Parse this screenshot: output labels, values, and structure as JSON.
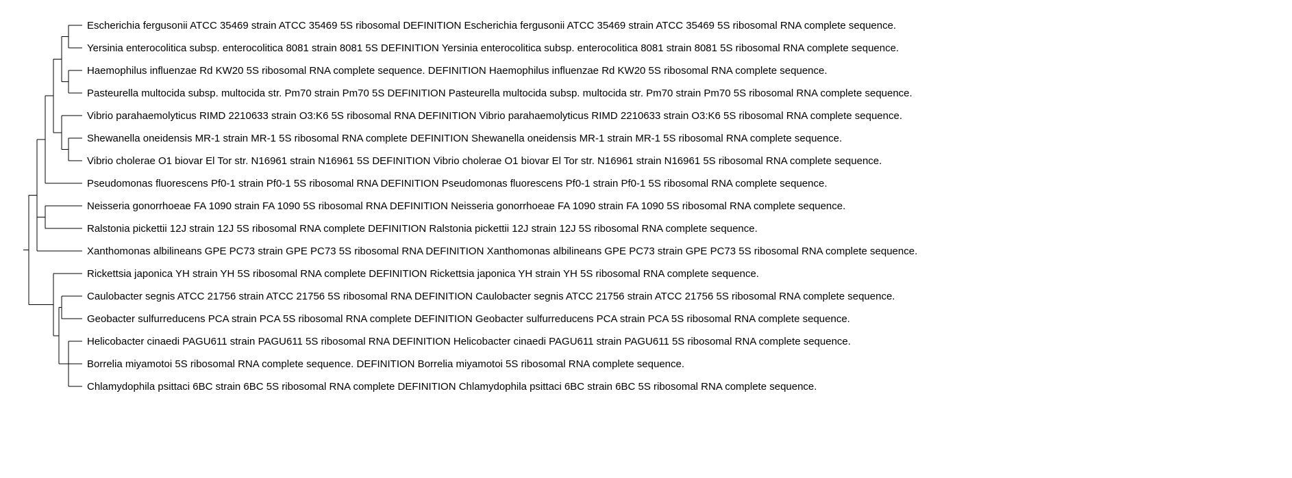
{
  "tree": {
    "line_color": "#000000",
    "label_color": "#000000",
    "leaves": [
      "Escherichia fergusonii ATCC 35469 strain ATCC 35469 5S ribosomal DEFINITION Escherichia fergusonii ATCC 35469 strain ATCC 35469 5S ribosomal RNA complete sequence.",
      "Yersinia enterocolitica subsp. enterocolitica 8081 strain 8081 5S DEFINITION Yersinia enterocolitica subsp. enterocolitica 8081 strain 8081 5S ribosomal RNA complete sequence.",
      "Haemophilus influenzae Rd KW20 5S ribosomal RNA complete sequence. DEFINITION Haemophilus influenzae Rd KW20 5S ribosomal RNA complete sequence.",
      "Pasteurella multocida subsp. multocida str. Pm70 strain Pm70 5S DEFINITION Pasteurella multocida subsp. multocida str. Pm70 strain Pm70 5S ribosomal RNA complete sequence.",
      "Vibrio parahaemolyticus RIMD 2210633 strain O3:K6 5S ribosomal RNA DEFINITION Vibrio parahaemolyticus RIMD 2210633 strain O3:K6 5S ribosomal RNA complete sequence.",
      "Shewanella oneidensis MR-1 strain MR-1 5S ribosomal RNA complete DEFINITION Shewanella oneidensis MR-1 strain MR-1 5S ribosomal RNA complete sequence.",
      "Vibrio cholerae O1 biovar El Tor str. N16961 strain N16961 5S DEFINITION Vibrio cholerae O1 biovar El Tor str. N16961 strain N16961 5S ribosomal RNA complete sequence.",
      "Pseudomonas fluorescens Pf0-1 strain Pf0-1 5S ribosomal RNA DEFINITION Pseudomonas fluorescens Pf0-1 strain Pf0-1 5S ribosomal RNA complete sequence.",
      "Neisseria gonorrhoeae FA 1090 strain FA 1090 5S ribosomal RNA DEFINITION Neisseria gonorrhoeae FA 1090 strain FA 1090 5S ribosomal RNA complete sequence.",
      "Ralstonia pickettii 12J strain 12J 5S ribosomal RNA complete DEFINITION Ralstonia pickettii 12J strain 12J 5S ribosomal RNA complete sequence.",
      "Xanthomonas albilineans GPE PC73 strain GPE PC73 5S ribosomal RNA DEFINITION Xanthomonas albilineans GPE PC73 strain GPE PC73 5S ribosomal RNA complete sequence.",
      "Rickettsia japonica YH strain YH 5S ribosomal RNA complete DEFINITION Rickettsia japonica YH strain YH 5S ribosomal RNA complete sequence.",
      "Caulobacter segnis ATCC 21756 strain ATCC 21756 5S ribosomal RNA DEFINITION Caulobacter segnis ATCC 21756 strain ATCC 21756 5S ribosomal RNA complete sequence.",
      "Geobacter sulfurreducens PCA strain PCA 5S ribosomal RNA complete DEFINITION Geobacter sulfurreducens PCA strain PCA 5S ribosomal RNA complete sequence.",
      "Helicobacter cinaedi PAGU611 strain PAGU611 5S ribosomal RNA DEFINITION Helicobacter cinaedi PAGU611 strain PAGU611 5S ribosomal RNA complete sequence.",
      "Borrelia miyamotoi 5S ribosomal RNA complete sequence. DEFINITION Borrelia miyamotoi 5S ribosomal RNA complete sequence.",
      "Chlamydophila psittaci 6BC strain 6BC 5S ribosomal RNA complete DEFINITION Chlamydophila psittaci 6BC strain 6BC 5S ribosomal RNA complete sequence."
    ]
  }
}
